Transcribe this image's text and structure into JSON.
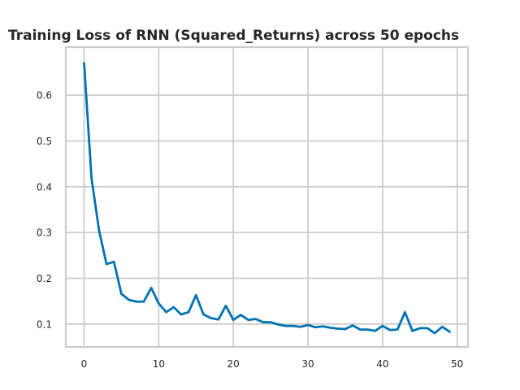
{
  "chart_data": {
    "type": "line",
    "title": "Training Loss of RNN (Squared_Returns) across 50 epochs",
    "xlabel": "",
    "ylabel": "",
    "xlim": [
      -2.45,
      51.45
    ],
    "ylim": [
      0.05,
      0.705
    ],
    "xticks": [
      0,
      10,
      20,
      30,
      40,
      50
    ],
    "yticks": [
      0.1,
      0.2,
      0.3,
      0.4,
      0.5,
      0.6
    ],
    "grid": true,
    "series": [
      {
        "color": "#0072b2",
        "x": [
          0,
          1,
          2,
          3,
          4,
          5,
          6,
          7,
          8,
          9,
          10,
          11,
          12,
          13,
          14,
          15,
          16,
          17,
          18,
          19,
          20,
          21,
          22,
          23,
          24,
          25,
          26,
          27,
          28,
          29,
          30,
          31,
          32,
          33,
          34,
          35,
          36,
          37,
          38,
          39,
          40,
          41,
          42,
          43,
          44,
          45,
          46,
          47,
          48,
          49
        ],
        "values": [
          0.67,
          0.418,
          0.305,
          0.231,
          0.236,
          0.166,
          0.153,
          0.149,
          0.149,
          0.179,
          0.145,
          0.126,
          0.137,
          0.121,
          0.126,
          0.163,
          0.121,
          0.113,
          0.11,
          0.14,
          0.109,
          0.12,
          0.109,
          0.111,
          0.104,
          0.104,
          0.099,
          0.096,
          0.096,
          0.094,
          0.098,
          0.093,
          0.095,
          0.092,
          0.09,
          0.089,
          0.097,
          0.088,
          0.088,
          0.085,
          0.096,
          0.087,
          0.088,
          0.126,
          0.085,
          0.091,
          0.091,
          0.08,
          0.094,
          0.083
        ]
      }
    ]
  }
}
